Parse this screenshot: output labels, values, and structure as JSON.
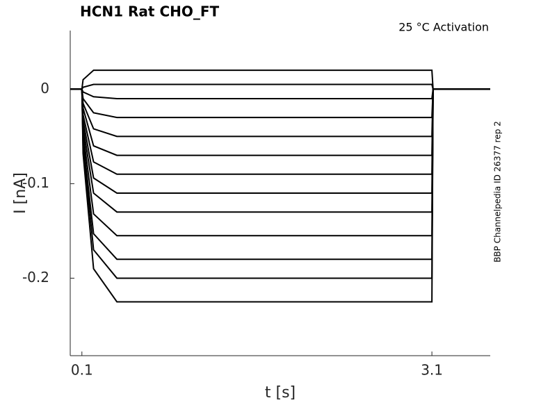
{
  "chart_data": {
    "type": "line",
    "title": "HCN1  Rat  CHO_FT",
    "annotation": "25 °C  Activation",
    "side_note": "BBP Channelpedia ID 26377 rep 2",
    "xlabel": "t [s]",
    "ylabel": "I [nA]",
    "color": "#000000",
    "x": [
      0,
      0.1,
      0.11,
      0.2,
      0.4,
      1.0,
      2.0,
      3.1,
      3.11,
      3.6
    ],
    "series": [
      {
        "values": [
          0,
          0,
          0.01,
          0.02,
          0.02,
          0.02,
          0.02,
          0.02,
          0,
          0
        ]
      },
      {
        "values": [
          0,
          0,
          0.002,
          0.005,
          0.005,
          0.005,
          0.005,
          0.005,
          0,
          0
        ]
      },
      {
        "values": [
          0,
          0,
          -0.003,
          -0.008,
          -0.01,
          -0.01,
          -0.01,
          -0.01,
          0,
          0
        ]
      },
      {
        "values": [
          0,
          0,
          -0.01,
          -0.025,
          -0.03,
          -0.03,
          -0.03,
          -0.03,
          0,
          0
        ]
      },
      {
        "values": [
          0,
          0,
          -0.015,
          -0.042,
          -0.05,
          -0.05,
          -0.05,
          -0.05,
          0,
          0
        ]
      },
      {
        "values": [
          0,
          0,
          -0.02,
          -0.06,
          -0.07,
          -0.07,
          -0.07,
          -0.07,
          0,
          0
        ]
      },
      {
        "values": [
          0,
          0,
          -0.027,
          -0.077,
          -0.09,
          -0.09,
          -0.09,
          -0.09,
          0,
          0
        ]
      },
      {
        "values": [
          0,
          0,
          -0.033,
          -0.094,
          -0.11,
          -0.11,
          -0.11,
          -0.11,
          0,
          0
        ]
      },
      {
        "values": [
          0,
          0,
          -0.04,
          -0.11,
          -0.13,
          -0.13,
          -0.13,
          -0.13,
          0,
          0
        ]
      },
      {
        "values": [
          0,
          0,
          -0.047,
          -0.132,
          -0.155,
          -0.155,
          -0.155,
          -0.155,
          0,
          0
        ]
      },
      {
        "values": [
          0,
          0,
          -0.055,
          -0.153,
          -0.18,
          -0.18,
          -0.18,
          -0.18,
          0,
          0
        ]
      },
      {
        "values": [
          0,
          0,
          -0.06,
          -0.17,
          -0.2,
          -0.2,
          -0.2,
          -0.2,
          0,
          0
        ]
      },
      {
        "values": [
          0,
          0,
          -0.068,
          -0.19,
          -0.225,
          -0.225,
          -0.225,
          -0.225,
          0,
          0
        ]
      }
    ],
    "xlim": [
      0,
      3.6
    ],
    "ylim": [
      -0.282,
      0.062
    ],
    "xticks": [
      0.1,
      3.1
    ],
    "yticks": [
      -0.2,
      -0.1,
      0
    ]
  }
}
